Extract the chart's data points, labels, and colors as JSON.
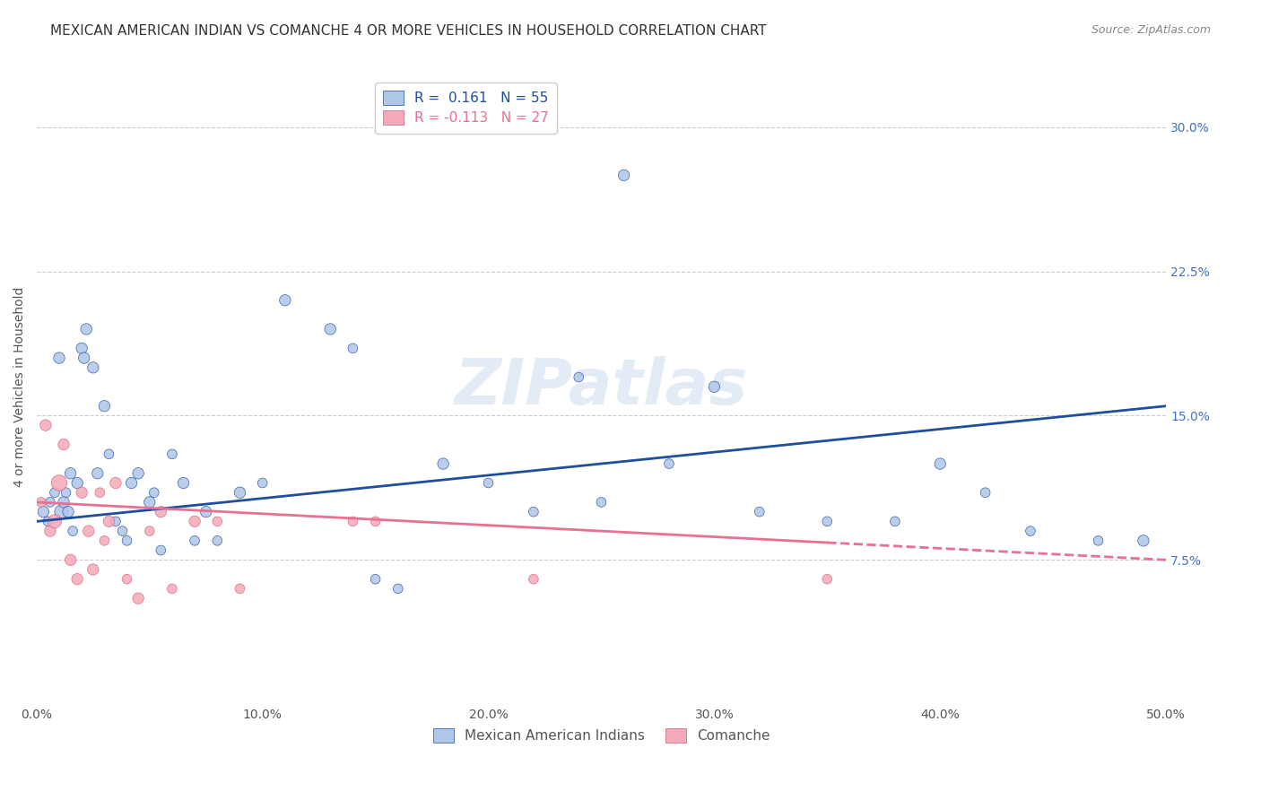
{
  "title": "MEXICAN AMERICAN INDIAN VS COMANCHE 4 OR MORE VEHICLES IN HOUSEHOLD CORRELATION CHART",
  "source": "Source: ZipAtlas.com",
  "ylabel": "4 or more Vehicles in Household",
  "ytick_vals": [
    7.5,
    15.0,
    22.5,
    30.0
  ],
  "xlim": [
    0.0,
    50.0
  ],
  "ylim": [
    0.0,
    33.0
  ],
  "legend1_label": "R =  0.161   N = 55",
  "legend2_label": "R = -0.113   N = 27",
  "legend1_color": "#aec6e8",
  "legend2_color": "#f4a9b8",
  "blue_line_color": "#1f4e9e",
  "pink_line_color": "#e87090",
  "watermark": "ZIPatlas",
  "blue_x": [
    0.3,
    0.5,
    0.6,
    0.8,
    1.0,
    1.1,
    1.2,
    1.3,
    1.4,
    1.5,
    1.6,
    1.8,
    2.0,
    2.1,
    2.2,
    2.5,
    2.7,
    3.0,
    3.2,
    3.5,
    3.8,
    4.0,
    4.2,
    4.5,
    5.0,
    5.2,
    5.5,
    6.0,
    6.5,
    7.0,
    7.5,
    8.0,
    9.0,
    10.0,
    11.0,
    13.0,
    14.0,
    15.0,
    16.0,
    18.0,
    20.0,
    22.0,
    24.0,
    25.0,
    26.0,
    28.0,
    30.0,
    32.0,
    35.0,
    38.0,
    40.0,
    42.0,
    44.0,
    47.0,
    49.0
  ],
  "blue_y": [
    10.0,
    9.5,
    10.5,
    11.0,
    18.0,
    10.0,
    10.5,
    11.0,
    10.0,
    12.0,
    9.0,
    11.5,
    18.5,
    18.0,
    19.5,
    17.5,
    12.0,
    15.5,
    13.0,
    9.5,
    9.0,
    8.5,
    11.5,
    12.0,
    10.5,
    11.0,
    8.0,
    13.0,
    11.5,
    8.5,
    10.0,
    8.5,
    11.0,
    11.5,
    21.0,
    19.5,
    18.5,
    6.5,
    6.0,
    12.5,
    11.5,
    10.0,
    17.0,
    10.5,
    27.5,
    12.5,
    16.5,
    10.0,
    9.5,
    9.5,
    12.5,
    11.0,
    9.0,
    8.5,
    8.5
  ],
  "blue_sizes": [
    80,
    60,
    60,
    60,
    80,
    120,
    80,
    60,
    80,
    80,
    60,
    80,
    80,
    80,
    80,
    80,
    80,
    80,
    60,
    60,
    60,
    60,
    80,
    80,
    80,
    60,
    60,
    60,
    80,
    60,
    80,
    60,
    80,
    60,
    80,
    80,
    60,
    60,
    60,
    80,
    60,
    60,
    60,
    60,
    80,
    60,
    80,
    60,
    60,
    60,
    80,
    60,
    60,
    60,
    80
  ],
  "pink_x": [
    0.2,
    0.4,
    0.6,
    0.8,
    1.0,
    1.2,
    1.5,
    1.8,
    2.0,
    2.3,
    2.5,
    2.8,
    3.0,
    3.2,
    3.5,
    4.0,
    4.5,
    5.0,
    5.5,
    6.0,
    7.0,
    8.0,
    9.0,
    14.0,
    15.0,
    22.0,
    35.0
  ],
  "pink_y": [
    10.5,
    14.5,
    9.0,
    9.5,
    11.5,
    13.5,
    7.5,
    6.5,
    11.0,
    9.0,
    7.0,
    11.0,
    8.5,
    9.5,
    11.5,
    6.5,
    5.5,
    9.0,
    10.0,
    6.0,
    9.5,
    9.5,
    6.0,
    9.5,
    9.5,
    6.5,
    6.5
  ],
  "pink_sizes": [
    60,
    80,
    80,
    120,
    160,
    80,
    80,
    80,
    80,
    80,
    80,
    60,
    60,
    80,
    80,
    60,
    80,
    60,
    80,
    60,
    80,
    60,
    60,
    60,
    60,
    60,
    60
  ],
  "blue_trend_y_start": 9.5,
  "blue_trend_y_end": 15.5,
  "pink_trend_y_start": 10.5,
  "pink_trend_y_end": 7.5,
  "pink_solid_end": 35.0,
  "grid_color": "#cccccc",
  "right_tick_color": "#4472c4",
  "background_color": "#ffffff",
  "title_fontsize": 11,
  "source_fontsize": 9,
  "legend_fontsize": 11,
  "axis_label_fontsize": 10,
  "tick_fontsize": 10,
  "bottom_legend_labels": [
    "Mexican American Indians",
    "Comanche"
  ]
}
